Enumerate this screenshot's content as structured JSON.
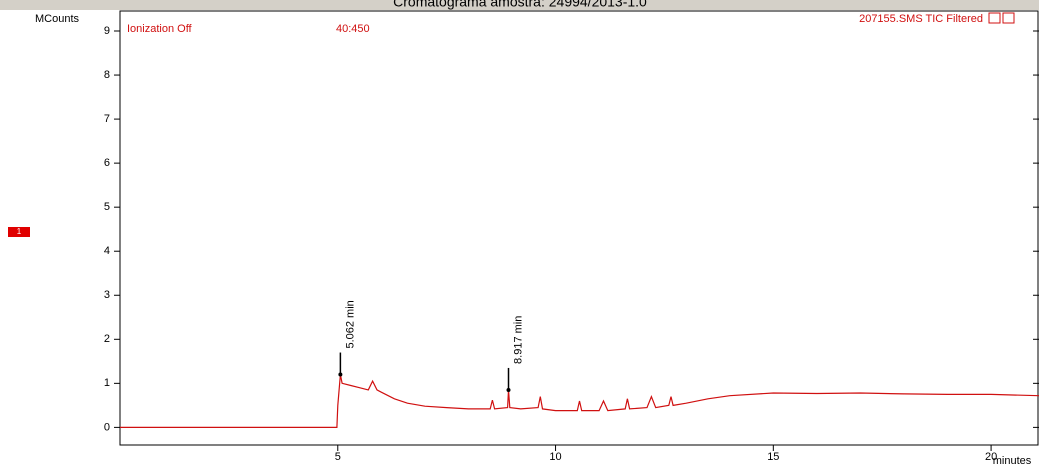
{
  "chart_data": {
    "type": "line",
    "title": "Cromatograma amostra: 24994/2013-1.0",
    "y_label": "MCounts",
    "x_label": "minutes",
    "header_left": "Ionization Off",
    "header_mid": "40:450",
    "header_right": "207155.SMS TIC Filtered",
    "trace_marker": "1",
    "annotations": [
      "5.062 min",
      "8.917 min"
    ],
    "xlim": [
      0,
      21.1
    ],
    "ylim": [
      -0.4,
      9.25
    ],
    "xticks": [
      5,
      10,
      15,
      20
    ],
    "yticks": [
      0,
      1,
      2,
      3,
      4,
      5,
      6,
      7,
      8,
      9
    ],
    "x": [
      0,
      4.98,
      5.0,
      5.06,
      5.1,
      5.3,
      5.5,
      5.7,
      5.8,
      5.9,
      6.0,
      6.3,
      6.6,
      7.0,
      7.5,
      8.0,
      8.5,
      8.55,
      8.6,
      8.9,
      8.92,
      8.95,
      9.2,
      9.6,
      9.65,
      9.7,
      10.0,
      10.5,
      10.55,
      10.6,
      11.0,
      11.1,
      11.2,
      11.6,
      11.65,
      11.7,
      12.1,
      12.2,
      12.3,
      12.6,
      12.65,
      12.7,
      13.0,
      13.5,
      14.0,
      15.0,
      16.0,
      17.0,
      18.0,
      19.0,
      20.0,
      21.1
    ],
    "series": [
      {
        "color": "#d01010",
        "values": [
          0,
          0,
          0.5,
          1.2,
          1.0,
          0.95,
          0.9,
          0.85,
          1.05,
          0.85,
          0.8,
          0.65,
          0.55,
          0.48,
          0.45,
          0.42,
          0.42,
          0.62,
          0.42,
          0.45,
          0.85,
          0.45,
          0.42,
          0.45,
          0.7,
          0.42,
          0.38,
          0.38,
          0.6,
          0.38,
          0.38,
          0.6,
          0.38,
          0.42,
          0.65,
          0.42,
          0.45,
          0.7,
          0.45,
          0.5,
          0.7,
          0.5,
          0.55,
          0.65,
          0.72,
          0.78,
          0.77,
          0.78,
          0.76,
          0.75,
          0.75,
          0.72
        ]
      }
    ]
  }
}
